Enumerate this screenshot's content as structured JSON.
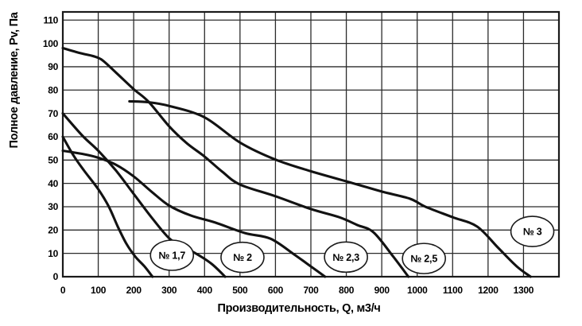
{
  "chart_data": {
    "type": "line",
    "title": "",
    "xlabel": "Производительность, Q, м3/ч",
    "ylabel": "Полное давление, Pv, Па",
    "xlim": [
      0,
      1400
    ],
    "ylim": [
      0,
      113.5
    ],
    "x_ticks": [
      0,
      100,
      200,
      300,
      400,
      500,
      600,
      700,
      800,
      900,
      1000,
      1100,
      1200,
      1300
    ],
    "y_ticks": [
      0,
      10,
      20,
      30,
      40,
      50,
      60,
      70,
      80,
      90,
      100,
      110
    ],
    "grid": true,
    "legend_position": "ellipse-labels-on-plot",
    "series": [
      {
        "id": "no-1-7",
        "name": "№ 1,7",
        "points": [
          [
            0,
            60
          ],
          [
            30,
            52
          ],
          [
            60,
            45.5
          ],
          [
            100,
            37.5
          ],
          [
            130,
            30
          ],
          [
            155,
            21.5
          ],
          [
            180,
            14
          ],
          [
            205,
            8.5
          ],
          [
            230,
            4.5
          ],
          [
            253,
            0
          ]
        ]
      },
      {
        "id": "no-2",
        "name": "№ 2",
        "points": [
          [
            0,
            70
          ],
          [
            55,
            60.5
          ],
          [
            100,
            54
          ],
          [
            150,
            45.5
          ],
          [
            200,
            35.5
          ],
          [
            250,
            25.5
          ],
          [
            300,
            16.5
          ],
          [
            340,
            12.8
          ],
          [
            375,
            10
          ],
          [
            420,
            5.5
          ],
          [
            458,
            0
          ]
        ]
      },
      {
        "id": "no-2-3",
        "name": "№ 2,3",
        "points": [
          [
            0,
            54
          ],
          [
            60,
            52.5
          ],
          [
            100,
            51
          ],
          [
            150,
            48
          ],
          [
            200,
            43
          ],
          [
            250,
            36.5
          ],
          [
            300,
            30.5
          ],
          [
            360,
            26.3
          ],
          [
            430,
            23.2
          ],
          [
            514,
            18.7
          ],
          [
            586,
            16.3
          ],
          [
            653,
            9.5
          ],
          [
            700,
            4.4
          ],
          [
            740,
            0
          ]
        ]
      },
      {
        "id": "no-2-5",
        "name": "№ 2,5",
        "points": [
          [
            0,
            98
          ],
          [
            50,
            95.8
          ],
          [
            85,
            94.6
          ],
          [
            110,
            93
          ],
          [
            150,
            87.5
          ],
          [
            200,
            80.4
          ],
          [
            242,
            75
          ],
          [
            300,
            64.5
          ],
          [
            350,
            57.2
          ],
          [
            400,
            51.5
          ],
          [
            450,
            45
          ],
          [
            500,
            39.5
          ],
          [
            600,
            34.5
          ],
          [
            700,
            29
          ],
          [
            780,
            25.5
          ],
          [
            832,
            22.1
          ],
          [
            877,
            19
          ],
          [
            933,
            8.5
          ],
          [
            975,
            0
          ]
        ]
      },
      {
        "id": "no-3",
        "name": "№ 3",
        "points": [
          [
            188,
            75.2
          ],
          [
            240,
            74.8
          ],
          [
            300,
            73.2
          ],
          [
            400,
            68.3
          ],
          [
            500,
            57.5
          ],
          [
            600,
            50.2
          ],
          [
            700,
            45.2
          ],
          [
            816,
            40.2
          ],
          [
            900,
            36.5
          ],
          [
            980,
            33.4
          ],
          [
            1023,
            30
          ],
          [
            1100,
            25.5
          ],
          [
            1169,
            21.5
          ],
          [
            1229,
            12.3
          ],
          [
            1281,
            4.4
          ],
          [
            1320,
            0
          ]
        ]
      }
    ],
    "curve_labels": [
      {
        "text": "№ 1,7",
        "x": 308,
        "y": 9.2
      },
      {
        "text": "№ 2",
        "x": 507,
        "y": 8.3
      },
      {
        "text": "№ 2,3",
        "x": 799,
        "y": 8.4
      },
      {
        "text": "№ 2,5",
        "x": 1019,
        "y": 7.8
      },
      {
        "text": "№ 3",
        "x": 1325,
        "y": 19.4
      }
    ]
  },
  "colors": {
    "background": "#ffffff",
    "curve": "#121212",
    "grid": "#2b2b2b",
    "frame": "#1a1a1a",
    "text": "#000000",
    "label_ellipse_fill": "#ffffff"
  }
}
